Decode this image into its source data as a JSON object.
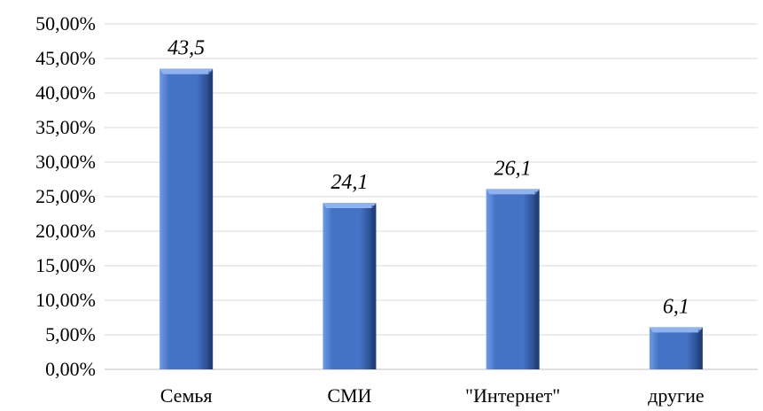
{
  "chart_data": {
    "type": "bar",
    "categories": [
      "Семья",
      "СМИ",
      "\"Интернет\"",
      "другие"
    ],
    "values": [
      43.5,
      24.1,
      26.1,
      6.1
    ],
    "data_labels": [
      "43,5",
      "24,1",
      "26,1",
      "6,1"
    ],
    "y_ticks": [
      "0,00%",
      "5,00%",
      "10,00%",
      "15,00%",
      "20,00%",
      "25,00%",
      "30,00%",
      "35,00%",
      "40,00%",
      "45,00%",
      "50,00%"
    ],
    "ylim": [
      0,
      50
    ],
    "ystep": 5,
    "grid": true,
    "legend": "none",
    "colors": {
      "bar_light": "#6f9be6",
      "bar_main": "#4472c4",
      "bar_dark": "#1f3d78",
      "bar_top": "#8fb3f0"
    }
  }
}
